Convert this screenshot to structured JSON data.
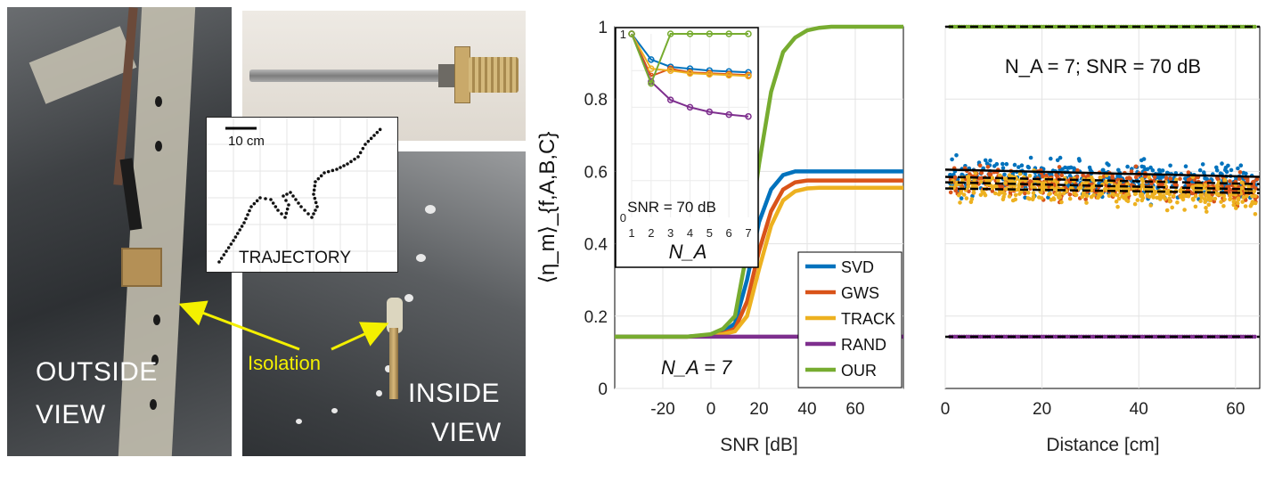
{
  "photos": {
    "outside_label_line1": "OUTSIDE",
    "outside_label_line2": "VIEW",
    "inside_label_line1": "INSIDE",
    "inside_label_line2": "VIEW",
    "isolation_label": "Isolation",
    "trajectory_label": "TRAJECTORY",
    "scale_label": "10 cm",
    "isolation_color": "#f4f000"
  },
  "chart_data": [
    {
      "type": "line",
      "xlabel": "SNR [dB]",
      "ylabel": "⟨η_m⟩_{f,A,B,C}",
      "xticks": [
        "-20",
        "0",
        "20",
        "40",
        "60"
      ],
      "yticks": [
        "0",
        "0.2",
        "0.4",
        "0.6",
        "0.8",
        "1"
      ],
      "xlim": [
        -40,
        80
      ],
      "ylim": [
        0,
        1
      ],
      "annotation": "N_A = 7",
      "legend_position": "bottom-right",
      "x": [
        -40,
        -30,
        -20,
        -10,
        0,
        5,
        10,
        15,
        20,
        25,
        30,
        35,
        40,
        45,
        50,
        60,
        70,
        80
      ],
      "series": [
        {
          "name": "SVD",
          "color": "#0072BD",
          "values": [
            0.143,
            0.143,
            0.143,
            0.143,
            0.148,
            0.155,
            0.18,
            0.3,
            0.46,
            0.55,
            0.59,
            0.6,
            0.6,
            0.6,
            0.6,
            0.6,
            0.6,
            0.6
          ]
        },
        {
          "name": "GWS",
          "color": "#D95319",
          "values": [
            0.143,
            0.143,
            0.143,
            0.143,
            0.146,
            0.152,
            0.165,
            0.24,
            0.38,
            0.49,
            0.55,
            0.57,
            0.575,
            0.575,
            0.575,
            0.575,
            0.575,
            0.575
          ]
        },
        {
          "name": "TRACK",
          "color": "#EDB120",
          "values": [
            0.143,
            0.143,
            0.143,
            0.143,
            0.145,
            0.15,
            0.158,
            0.2,
            0.33,
            0.45,
            0.52,
            0.545,
            0.553,
            0.555,
            0.555,
            0.555,
            0.555,
            0.555
          ]
        },
        {
          "name": "RAND",
          "color": "#7E2F8E",
          "values": [
            0.143,
            0.143,
            0.143,
            0.143,
            0.143,
            0.143,
            0.143,
            0.143,
            0.143,
            0.143,
            0.143,
            0.143,
            0.143,
            0.143,
            0.143,
            0.143,
            0.143,
            0.143
          ]
        },
        {
          "name": "OUR",
          "color": "#77AC30",
          "values": [
            0.143,
            0.143,
            0.143,
            0.143,
            0.15,
            0.165,
            0.2,
            0.38,
            0.62,
            0.82,
            0.93,
            0.97,
            0.99,
            0.997,
            1.0,
            1.0,
            1.0,
            1.0
          ]
        }
      ]
    },
    {
      "type": "line",
      "title": "SNR = 70 dB",
      "xlabel": "N_A",
      "xticks": [
        "1",
        "2",
        "3",
        "4",
        "5",
        "6",
        "7"
      ],
      "yticks": [
        "0",
        "1"
      ],
      "ylim": [
        0,
        1
      ],
      "x": [
        1,
        2,
        3,
        4,
        5,
        6,
        7
      ],
      "series": [
        {
          "name": "SVD",
          "color": "#0072BD",
          "values": [
            1.0,
            0.86,
            0.82,
            0.81,
            0.8,
            0.795,
            0.79
          ]
        },
        {
          "name": "GWS",
          "color": "#D95319",
          "values": [
            1.0,
            0.77,
            0.81,
            0.79,
            0.785,
            0.78,
            0.775
          ]
        },
        {
          "name": "TRACK",
          "color": "#EDB120",
          "values": [
            1.0,
            0.81,
            0.8,
            0.785,
            0.78,
            0.775,
            0.77
          ]
        },
        {
          "name": "RAND",
          "color": "#7E2F8E",
          "values": [
            1.0,
            0.74,
            0.64,
            0.6,
            0.575,
            0.56,
            0.55
          ]
        },
        {
          "name": "OUR",
          "color": "#77AC30",
          "values": [
            1.0,
            0.73,
            1.0,
            1.0,
            1.0,
            1.0,
            1.0
          ]
        }
      ]
    },
    {
      "type": "scatter",
      "annotation": "N_A = 7;  SNR = 70 dB",
      "xlabel": "Distance [cm]",
      "xticks": [
        "0",
        "20",
        "40",
        "60"
      ],
      "xlim": [
        0,
        65
      ],
      "ylim": [
        0,
        1
      ],
      "series": [
        {
          "name": "OUR",
          "color": "#77AC30",
          "mean": 1.0
        },
        {
          "name": "SVD",
          "color": "#0072BD",
          "mean": 0.59,
          "spread": 0.07
        },
        {
          "name": "GWS",
          "color": "#D95319",
          "mean": 0.575,
          "spread": 0.06
        },
        {
          "name": "TRACK",
          "color": "#EDB120",
          "mean": 0.56,
          "spread": 0.06
        },
        {
          "name": "RAND",
          "color": "#7E2F8E",
          "mean": 0.143
        }
      ],
      "fit_lines": [
        {
          "start": 0.605,
          "end": 0.585,
          "style": "solid"
        },
        {
          "start": 0.585,
          "end": 0.565,
          "style": "dashed"
        },
        {
          "start": 0.57,
          "end": 0.55,
          "style": "dashed"
        },
        {
          "start": 0.553,
          "end": 0.54,
          "style": "dashed"
        },
        {
          "start": 1.0,
          "end": 1.0,
          "style": "dashed"
        },
        {
          "start": 0.143,
          "end": 0.143,
          "style": "dashed"
        }
      ]
    }
  ]
}
